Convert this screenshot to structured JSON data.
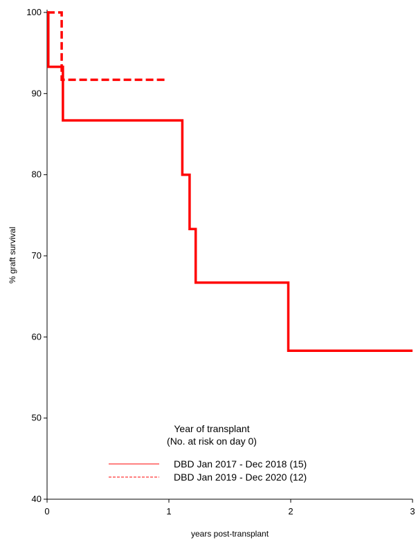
{
  "chart_data": {
    "type": "line",
    "subtype": "kaplan-meier step",
    "xlabel": "years post-transplant",
    "ylabel": "% graft survival",
    "xlim": [
      0,
      3
    ],
    "ylim": [
      40,
      100
    ],
    "xticks": [
      0,
      1,
      2,
      3
    ],
    "yticks": [
      40,
      50,
      60,
      70,
      80,
      90,
      100
    ],
    "grid": false,
    "legend": {
      "position": "bottom-center",
      "title": "Year of transplant",
      "subtitle": "(No. at risk on day 0)"
    },
    "series": [
      {
        "name": "DBD Jan 2017 - Dec 2018 (15)",
        "color": "#ff0000",
        "style": "solid",
        "points": [
          [
            0,
            100
          ],
          [
            0.01,
            100
          ],
          [
            0.01,
            93.3
          ],
          [
            0.13,
            93.3
          ],
          [
            0.13,
            86.7
          ],
          [
            1.11,
            86.7
          ],
          [
            1.11,
            80
          ],
          [
            1.17,
            80
          ],
          [
            1.17,
            73.3
          ],
          [
            1.22,
            73.3
          ],
          [
            1.22,
            66.7
          ],
          [
            1.98,
            66.7
          ],
          [
            1.98,
            58.3
          ],
          [
            3.0,
            58.3
          ]
        ]
      },
      {
        "name": "DBD Jan 2019 - Dec 2020 (12)",
        "color": "#ff0000",
        "style": "dashed",
        "points": [
          [
            0,
            100
          ],
          [
            0.12,
            100
          ],
          [
            0.12,
            91.7
          ],
          [
            0.98,
            91.7
          ]
        ]
      }
    ]
  }
}
